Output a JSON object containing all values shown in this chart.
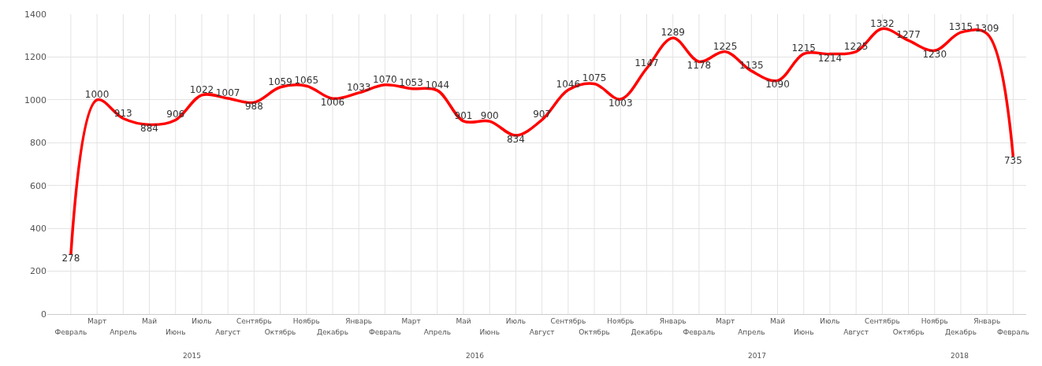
{
  "chart_data": {
    "type": "line",
    "categories": [
      "Февраль",
      "Март",
      "Апрель",
      "Май",
      "Июнь",
      "Июль",
      "Август",
      "Сентябрь",
      "Октябрь",
      "Ноябрь",
      "Декабрь",
      "Январь",
      "Февраль",
      "Март",
      "Апрель",
      "Май",
      "Июнь",
      "Июль",
      "Август",
      "Сентябрь",
      "Октябрь",
      "Ноябрь",
      "Декабрь",
      "Январь",
      "Февраль",
      "Март",
      "Апрель",
      "Май",
      "Июнь",
      "Июль",
      "Август",
      "Сентябрь",
      "Октябрь",
      "Ноябрь",
      "Декабрь",
      "Январь",
      "Февраль"
    ],
    "series": [
      {
        "color": "#ff0000",
        "values": [
          278,
          1000,
          913,
          884,
          906,
          1022,
          1007,
          988,
          1059,
          1065,
          1006,
          1033,
          1070,
          1053,
          1044,
          901,
          900,
          834,
          907,
          1046,
          1075,
          1003,
          1147,
          1289,
          1178,
          1225,
          1135,
          1090,
          1215,
          1214,
          1225,
          1332,
          1277,
          1230,
          1315,
          1309,
          735
        ]
      }
    ],
    "data_labels": true,
    "ylim": [
      0,
      1400
    ],
    "yticks": [
      0,
      200,
      400,
      600,
      800,
      1000,
      1200,
      1400
    ],
    "grid": true,
    "marker": "none",
    "line_style": "solid",
    "annotations": [
      "2015",
      "2016",
      "2017",
      "2018"
    ]
  }
}
